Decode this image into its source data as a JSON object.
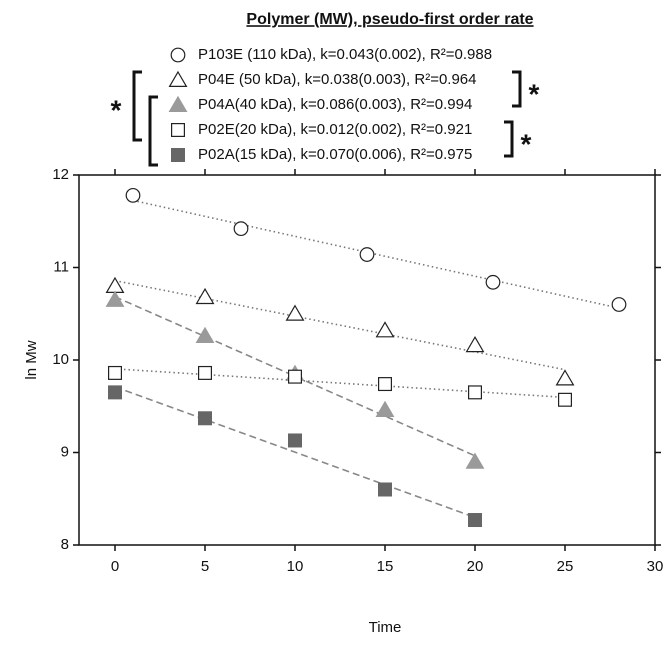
{
  "chart_data": {
    "type": "scatter",
    "legend_title": "Polymer (MW), pseudo-first order rate",
    "xlabel": "Time",
    "ylabel": "ln Mw",
    "xlim": [
      -2,
      30
    ],
    "xticks": [
      0,
      5,
      10,
      15,
      20,
      25,
      30
    ],
    "ylim": [
      8,
      12
    ],
    "yticks": [
      8,
      9,
      10,
      11,
      12
    ],
    "annotations": [
      "*",
      "*",
      "*"
    ],
    "series": [
      {
        "name": "P103E (110 kDa), k=0.043(0.002), R²=0.988",
        "color": "#222222",
        "marker": "circle",
        "filled": false,
        "trend": "dotted",
        "x": [
          1,
          7,
          14,
          21,
          28
        ],
        "values": [
          11.78,
          11.42,
          11.14,
          10.84,
          10.6
        ]
      },
      {
        "name": "P04E (50 kDa), k=0.038(0.003), R²=0.964",
        "color": "#555555",
        "marker": "triangle",
        "filled": false,
        "trend": "dotted",
        "x": [
          0,
          5,
          10,
          15,
          20,
          25
        ],
        "values": [
          10.8,
          10.68,
          10.5,
          10.32,
          10.16,
          9.8
        ]
      },
      {
        "name": "P04A(40 kDa), k=0.086(0.003), R²=0.994",
        "color": "#9a9a9a",
        "marker": "triangle",
        "filled": true,
        "trend": "dashed",
        "x": [
          0,
          5,
          10,
          15,
          20
        ],
        "values": [
          10.65,
          10.26,
          9.85,
          9.46,
          8.9
        ]
      },
      {
        "name": "P02E(20 kDa), k=0.012(0.002), R²=0.921",
        "color": "#333333",
        "marker": "square",
        "filled": false,
        "trend": "dotted",
        "x": [
          0,
          5,
          10,
          15,
          20,
          25
        ],
        "values": [
          9.86,
          9.86,
          9.82,
          9.74,
          9.65,
          9.57
        ]
      },
      {
        "name": "P02A(15 kDa), k=0.070(0.006), R²=0.975",
        "color": "#666666",
        "marker": "square",
        "filled": true,
        "trend": "dashed",
        "x": [
          0,
          5,
          10,
          15,
          20
        ],
        "values": [
          9.65,
          9.37,
          9.13,
          8.6,
          8.27
        ]
      }
    ]
  }
}
